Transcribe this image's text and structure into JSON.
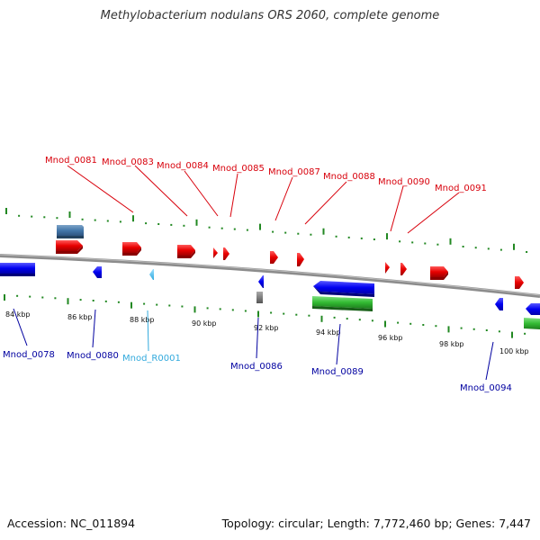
{
  "title": "Methylobacterium nodulans ORS 2060, complete genome",
  "footer": {
    "accession": "Accession: NC_011894",
    "summary": "Topology: circular; Length: 7,772,460 bp; Genes: 7,447"
  },
  "colors": {
    "forward_label": "#d8000b",
    "reverse_label": "#0000a0",
    "rna_label": "#33aadd",
    "forward_gene": "#e00000",
    "reverse_gene": "#0000ff",
    "rna_gene": "#44bbee",
    "cds_domain": "#33aa33",
    "misc_feature": "#4477aa",
    "pseudo": "#777777",
    "backbone": "#8c8c8c",
    "ticks": "#228822"
  },
  "ticks": [
    "84 kbp",
    "86 kbp",
    "88 kbp",
    "90 kbp",
    "92 kbp",
    "94 kbp",
    "96 kbp",
    "98 kbp",
    "100 kbp"
  ],
  "forward_genes": [
    "Mnod_0081",
    "Mnod_0083",
    "Mnod_0084",
    "Mnod_0085",
    "Mnod_0087",
    "Mnod_0088",
    "Mnod_0090",
    "Mnod_0091"
  ],
  "reverse_genes": [
    "Mnod_0078",
    "Mnod_0080",
    "Mnod_R0001",
    "Mnod_0086",
    "Mnod_0089",
    "Mnod_0094"
  ]
}
